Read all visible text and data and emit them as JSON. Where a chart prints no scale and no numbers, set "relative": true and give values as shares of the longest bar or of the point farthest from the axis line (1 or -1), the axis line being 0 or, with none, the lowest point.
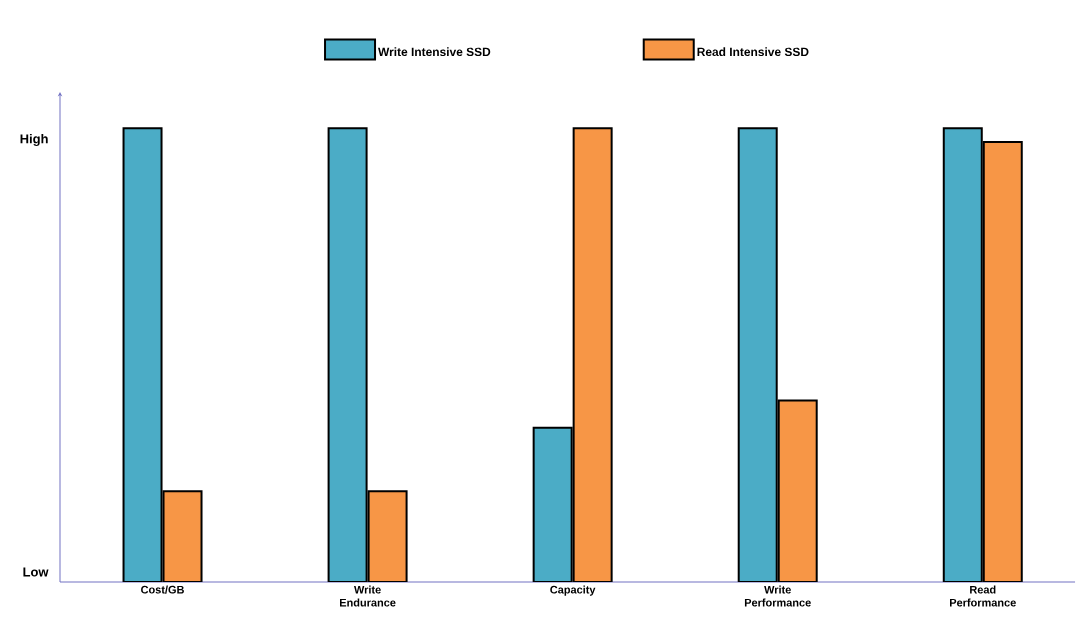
{
  "chart_data": {
    "type": "bar",
    "relative": true,
    "categories": [
      "Cost/GB",
      "Write Endurance",
      "Capacity",
      "Write Performance",
      "Read Performance"
    ],
    "series": [
      {
        "name": "Write Intensive SSD",
        "color": "#4bacc6",
        "values": [
          1,
          1,
          0.34,
          1,
          1
        ]
      },
      {
        "name": "Read Intensive SSD",
        "color": "#f79646",
        "values": [
          0.2,
          0.2,
          1,
          0.4,
          0.97
        ]
      }
    ],
    "annotations": [
      "High",
      "Low"
    ],
    "legend": "top"
  }
}
